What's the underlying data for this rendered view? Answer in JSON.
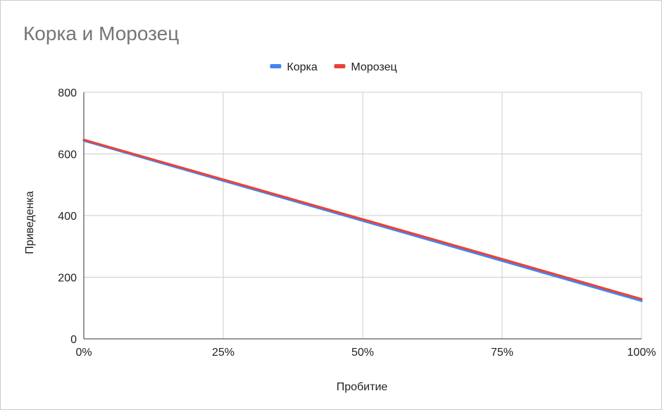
{
  "chart_data": {
    "type": "line",
    "title": "Корка и Морозец",
    "xlabel": "Пробитие",
    "ylabel": "Приведенка",
    "x": [
      0,
      0.25,
      0.5,
      0.75,
      1
    ],
    "x_tick_labels": [
      "0%",
      "25%",
      "50%",
      "75%",
      "100%"
    ],
    "y_ticks": [
      0,
      200,
      400,
      600,
      800
    ],
    "y_tick_labels": [
      "0",
      "200",
      "400",
      "600",
      "800"
    ],
    "xlim": [
      0,
      1
    ],
    "ylim": [
      0,
      800
    ],
    "grid": true,
    "legend": "top-center",
    "series": [
      {
        "name": "Корка",
        "color": "#4285f4",
        "values": [
          643,
          513,
          383,
          253,
          123
        ]
      },
      {
        "name": "Морозец",
        "color": "#ea4335",
        "values": [
          646,
          517,
          388,
          259,
          129
        ]
      }
    ]
  }
}
